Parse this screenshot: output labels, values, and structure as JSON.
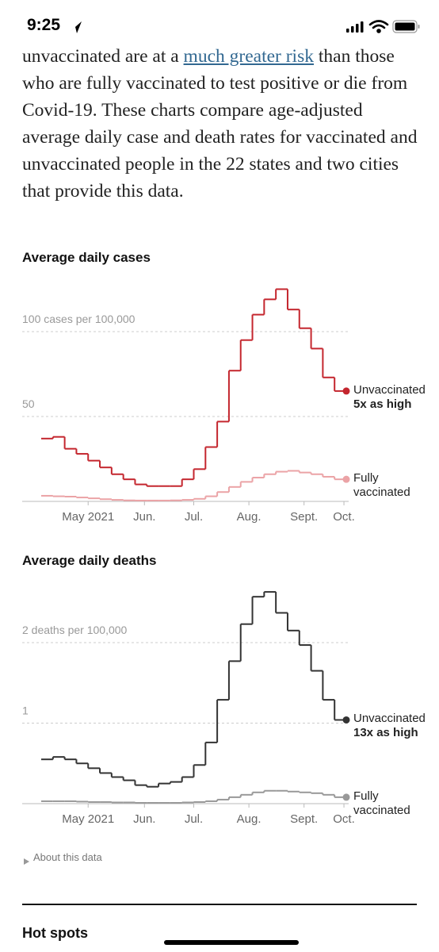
{
  "status_bar": {
    "time": "9:25"
  },
  "article": {
    "text_before": "unvaccinated are at a ",
    "link": "much greater risk",
    "text_after": " than those who are fully vaccinated to test positive or die from Covid-19. These charts compare age-adjusted average daily case and death rates for vaccinated and unvaccinated people in the 22 states and two cities that provide this data."
  },
  "chart_data": [
    {
      "type": "line",
      "step": true,
      "title": "Average daily cases",
      "x": [
        0,
        1,
        2,
        3,
        4,
        5,
        6,
        7,
        8,
        9,
        10,
        11,
        12,
        13,
        14,
        15,
        16,
        17,
        18,
        19,
        20,
        21,
        22,
        23,
        24,
        25
      ],
      "xlim": [
        0,
        26
      ],
      "xticks": [
        {
          "value": 4,
          "label": "May 2021"
        },
        {
          "value": 8.8,
          "label": "Jun."
        },
        {
          "value": 13,
          "label": "Jul."
        },
        {
          "value": 17.7,
          "label": "Aug."
        },
        {
          "value": 22.4,
          "label": "Sept."
        },
        {
          "value": 25.8,
          "label": "Oct."
        }
      ],
      "ylim": [
        0,
        130
      ],
      "yticks": [
        50,
        {
          "value": 100,
          "label": "100 cases per 100,000"
        }
      ],
      "grid": true,
      "series": [
        {
          "name": "Unvaccinated",
          "annotation": "5x as high",
          "color": "#c4262e",
          "values": [
            37,
            38,
            31,
            28,
            24,
            20,
            16,
            13,
            10,
            9,
            9,
            9,
            13,
            19,
            32,
            47,
            77,
            95,
            110,
            119,
            125,
            113,
            102,
            90,
            73,
            65
          ]
        },
        {
          "name": "Fully vaccinated",
          "color": "#eba3a6",
          "values": [
            3.3,
            3,
            2.8,
            2.3,
            1.8,
            1.3,
            0.9,
            0.6,
            0.5,
            0.5,
            0.5,
            0.6,
            0.9,
            1.5,
            3,
            5.5,
            8.5,
            11.5,
            14,
            16,
            17.5,
            18,
            17,
            16,
            14.5,
            13
          ]
        }
      ]
    },
    {
      "type": "line",
      "step": true,
      "title": "Average daily deaths",
      "x": [
        0,
        1,
        2,
        3,
        4,
        5,
        6,
        7,
        8,
        9,
        10,
        11,
        12,
        13,
        14,
        15,
        16,
        17,
        18,
        19,
        20,
        21,
        22,
        23,
        24,
        25
      ],
      "xlim": [
        0,
        26
      ],
      "xticks": [
        {
          "value": 4,
          "label": "May 2021"
        },
        {
          "value": 8.8,
          "label": "Jun."
        },
        {
          "value": 13,
          "label": "Jul."
        },
        {
          "value": 17.7,
          "label": "Aug."
        },
        {
          "value": 22.4,
          "label": "Sept."
        },
        {
          "value": 25.8,
          "label": "Oct."
        }
      ],
      "ylim": [
        0,
        2.7
      ],
      "yticks": [
        1,
        {
          "value": 2,
          "label": "2 deaths per 100,000"
        }
      ],
      "grid": true,
      "series": [
        {
          "name": "Unvaccinated",
          "annotation": "13x as high",
          "color": "#333333",
          "values": [
            0.55,
            0.58,
            0.55,
            0.5,
            0.44,
            0.38,
            0.33,
            0.29,
            0.23,
            0.21,
            0.25,
            0.27,
            0.33,
            0.48,
            0.76,
            1.29,
            1.77,
            2.23,
            2.57,
            2.63,
            2.37,
            2.15,
            1.97,
            1.65,
            1.29,
            1.04
          ]
        },
        {
          "name": "Fully vaccinated",
          "color": "#999999",
          "values": [
            0.03,
            0.03,
            0.03,
            0.025,
            0.02,
            0.02,
            0.015,
            0.015,
            0.01,
            0.01,
            0.01,
            0.01,
            0.015,
            0.02,
            0.03,
            0.05,
            0.08,
            0.11,
            0.14,
            0.16,
            0.16,
            0.15,
            0.14,
            0.13,
            0.11,
            0.08
          ]
        }
      ]
    }
  ],
  "about": "About this data",
  "next_section": "Hot spots"
}
